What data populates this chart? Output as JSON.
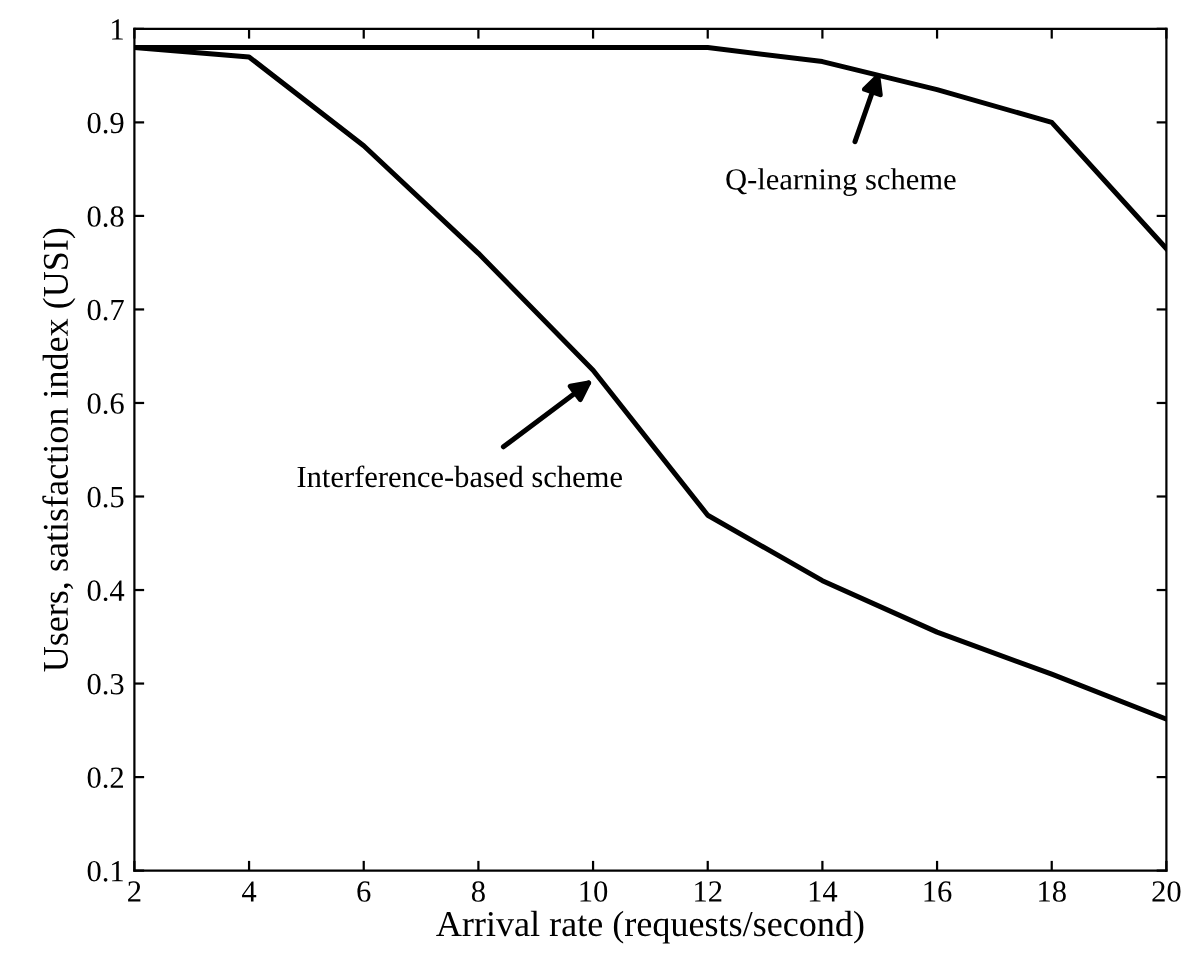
{
  "chart_data": {
    "type": "line",
    "xlabel": "Arrival rate (requests/second)",
    "ylabel": "Users, satisfaction index (USI)",
    "x": [
      2,
      4,
      6,
      8,
      10,
      12,
      14,
      16,
      18,
      20
    ],
    "series": [
      {
        "color": "#000000",
        "values": [
          0.98,
          0.98,
          0.98,
          0.98,
          0.98,
          0.98,
          0.965,
          0.935,
          0.9,
          0.765
        ]
      },
      {
        "color": "#000000",
        "values": [
          0.98,
          0.97,
          0.875,
          0.76,
          0.635,
          0.48,
          0.41,
          0.355,
          0.31,
          0.262
        ]
      }
    ],
    "annotations": [
      {
        "text": "Q-learning scheme",
        "x": 15,
        "y": 0.955
      },
      {
        "text": "Interference-based scheme",
        "x": 10,
        "y": 0.625
      }
    ],
    "xlim": [
      2,
      20
    ],
    "ylim": [
      0.1,
      1
    ],
    "xticks": [
      2,
      4,
      6,
      8,
      10,
      12,
      14,
      16,
      18,
      20
    ],
    "yticks": [
      0.1,
      0.2,
      0.3,
      0.4,
      0.5,
      0.6,
      0.7,
      0.8,
      0.9,
      1
    ],
    "grid": false,
    "legend": false,
    "marker": "none",
    "line_style": "solid"
  }
}
